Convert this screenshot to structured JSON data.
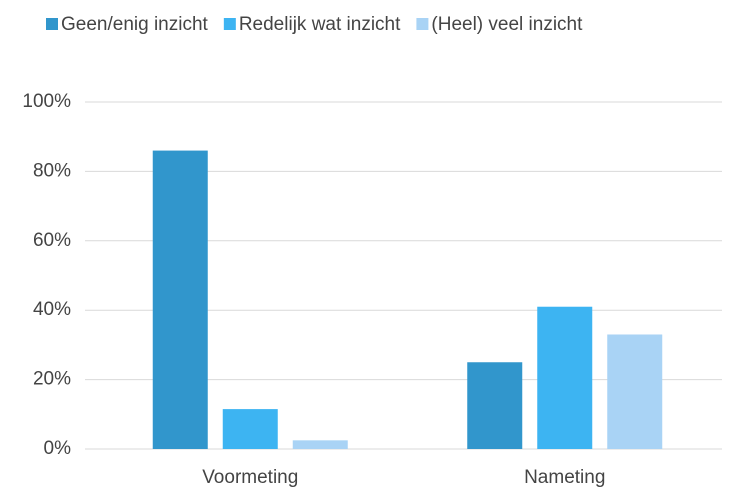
{
  "chart_data": {
    "type": "bar",
    "categories": [
      "Voormeting",
      "Nameting"
    ],
    "series": [
      {
        "name": "Geen/enig inzicht",
        "color": "#3196cc",
        "values": [
          86,
          25
        ]
      },
      {
        "name": "Redelijk wat inzicht",
        "color": "#3db4f2",
        "values": [
          11.5,
          41
        ]
      },
      {
        "name": "(Heel) veel inzicht",
        "color": "#a9d3f5",
        "values": [
          2.5,
          33
        ]
      }
    ],
    "ylim": [
      0,
      100
    ],
    "yticks": [
      {
        "value": 0,
        "label": "0%"
      },
      {
        "value": 20,
        "label": "20%"
      },
      {
        "value": 40,
        "label": "40%"
      },
      {
        "value": 60,
        "label": "60%"
      },
      {
        "value": 80,
        "label": "80%"
      },
      {
        "value": 100,
        "label": "100%"
      }
    ],
    "grid": true,
    "legend": "top"
  }
}
